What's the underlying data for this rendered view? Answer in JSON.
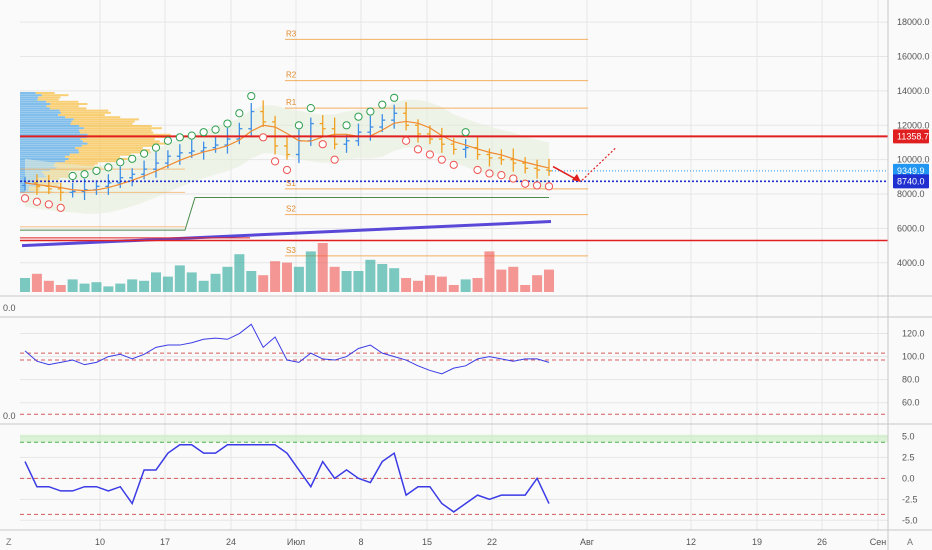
{
  "colors": {
    "up": "#26a69a",
    "down": "#ef5350",
    "pivot_line": "#f39c3d",
    "pivot_label": "#e08a2e",
    "resistance": "#e02020",
    "support": "#1f2fd0",
    "ma": "#5a48d8",
    "osc_line": "#3b3be6",
    "dashed": "#d55a5a",
    "axis_text": "#555555",
    "grid": "#e6e6e6",
    "price_tag_mid": "#2196f3"
  },
  "time_axis": {
    "ticks": [
      "10",
      "17",
      "24",
      "Июл",
      "8",
      "15",
      "22",
      "Авг",
      "12",
      "19",
      "26",
      "Сен"
    ],
    "left_icon": "Z",
    "right_icon": "A"
  },
  "left_labels": {
    "panel1": "0.0",
    "panel2": "0.0"
  },
  "chart_data": [
    {
      "type": "candlestick",
      "panel": "price",
      "yticks": [
        "18000.0",
        "16000.0",
        "14000.0",
        "12000.0",
        "10000.0",
        "8000.0",
        "6000.0",
        "4000.0"
      ],
      "ylim": [
        2300,
        19000
      ],
      "price_tags": [
        {
          "label": "11358.7",
          "value": 11358.7,
          "color": "#e02020"
        },
        {
          "label": "9349.9",
          "value": 9349.9,
          "color": "#2196f3"
        },
        {
          "label": "8740.0",
          "value": 8740.0,
          "color": "#1f2fd0"
        }
      ],
      "pivot_levels": [
        {
          "label": "R3",
          "value": 17000
        },
        {
          "label": "R2",
          "value": 14600
        },
        {
          "label": "R1",
          "value": 13000
        },
        {
          "label": "S1",
          "value": 8300
        },
        {
          "label": "S2",
          "value": 6800
        },
        {
          "label": "S3",
          "value": 4400
        }
      ],
      "closes": [
        8650,
        8450,
        8300,
        8100,
        8150,
        8250,
        8450,
        8650,
        8950,
        9150,
        9450,
        9800,
        10200,
        10400,
        10500,
        10700,
        10850,
        11200,
        11800,
        12800,
        12200,
        10800,
        10300,
        11100,
        12100,
        11800,
        10900,
        11100,
        11600,
        11900,
        12300,
        12700,
        12000,
        11500,
        11200,
        10900,
        10600,
        10700,
        10300,
        10100,
        10000,
        9800,
        9500,
        9400,
        9350
      ],
      "volumes": [
        1.0,
        1.3,
        0.8,
        0.5,
        0.9,
        0.6,
        0.7,
        0.4,
        0.6,
        0.9,
        0.8,
        1.4,
        1.1,
        1.9,
        1.4,
        0.8,
        1.3,
        1.8,
        2.7,
        1.5,
        1.2,
        2.2,
        2.1,
        1.8,
        2.9,
        3.5,
        1.8,
        1.5,
        1.5,
        2.3,
        2.0,
        1.7,
        1.0,
        0.8,
        1.2,
        1.1,
        0.5,
        0.9,
        1.0,
        2.9,
        1.6,
        1.8,
        0.5,
        1.2,
        1.6
      ]
    },
    {
      "type": "line",
      "panel": "oscillator-1",
      "yticks": [
        "120.0",
        "100.0",
        "80.0",
        "60.0"
      ],
      "ylim": [
        45,
        130
      ],
      "dashed_levels": [
        103,
        97,
        50
      ],
      "values": [
        105,
        96,
        93,
        95,
        97,
        93,
        95,
        100,
        102,
        98,
        102,
        108,
        110,
        110,
        112,
        115,
        116,
        115,
        120,
        128,
        108,
        117,
        97,
        95,
        103,
        98,
        97,
        100,
        107,
        110,
        103,
        100,
        97,
        92,
        88,
        85,
        90,
        92,
        98,
        100,
        98,
        96,
        98,
        98,
        95
      ]
    },
    {
      "type": "step-line",
      "panel": "oscillator-2",
      "yticks": [
        "5.0",
        "2.5",
        "0.0",
        "-2.5",
        "-5.0"
      ],
      "ylim": [
        -5.8,
        6.0
      ],
      "green_band": [
        4.3,
        5.2
      ],
      "dashed_levels": [
        4.3,
        0.0,
        -4.3
      ],
      "values": [
        2,
        -1,
        -1,
        -1.5,
        -1.5,
        -1,
        -1,
        -1.5,
        -1,
        -3,
        1,
        1,
        3,
        4,
        4,
        3,
        3,
        4,
        4,
        4,
        4,
        4,
        3,
        1,
        -1,
        2,
        0,
        1,
        0,
        -0.5,
        2,
        3,
        -2,
        -1,
        -1,
        -3,
        -4,
        -3,
        -2,
        -2.5,
        -2,
        -2,
        -2,
        0,
        -3
      ]
    }
  ]
}
